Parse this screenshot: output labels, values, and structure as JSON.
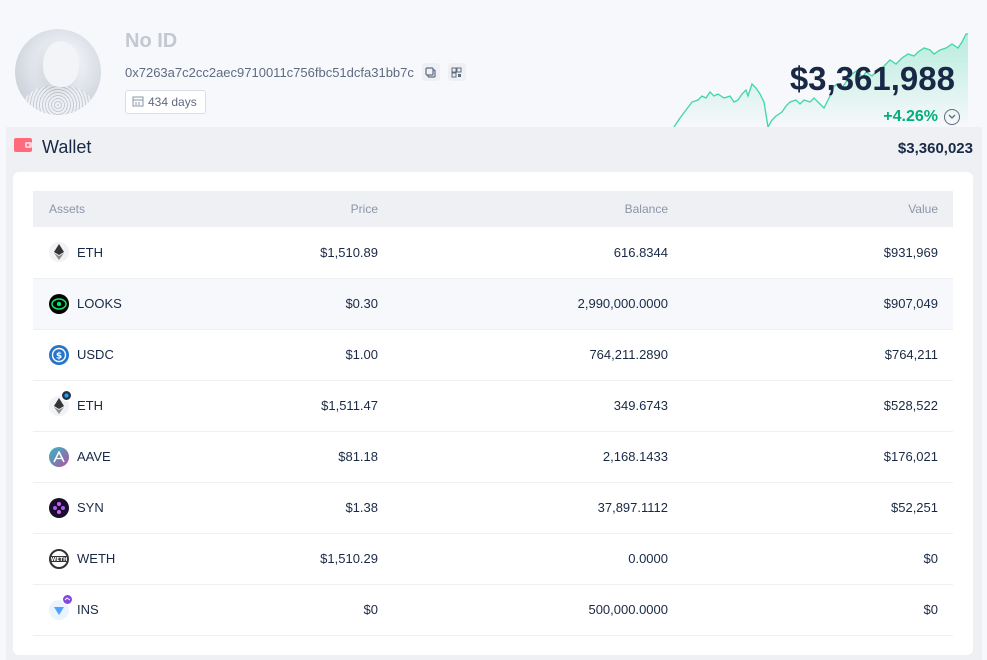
{
  "profile": {
    "name": "No ID",
    "address": "0x7263a7c2cc2aec9710011c756fbc51dcfa31bb7c",
    "days": "434 days",
    "total": "$3,361,988",
    "change": "+4.26%"
  },
  "icons": {
    "copy": "copy-icon",
    "qr": "qr-code-icon",
    "calendar": "calendar-icon",
    "wallet": "wallet-icon",
    "chevron": "chevron-down-icon"
  },
  "colors": {
    "positive": "#00b075",
    "wallet_icon": "#ff6b7d",
    "sparkline": "#3fd7a3"
  },
  "wallet": {
    "label": "Wallet",
    "total": "$3,360,023",
    "columns": {
      "assets": "Assets",
      "price": "Price",
      "balance": "Balance",
      "value": "Value"
    },
    "rows": [
      {
        "symbol": "ETH",
        "price": "$1,510.89",
        "balance": "616.8344",
        "value": "$931,969",
        "icon": "eth-icon"
      },
      {
        "symbol": "LOOKS",
        "price": "$0.30",
        "balance": "2,990,000.0000",
        "value": "$907,049",
        "icon": "looks-icon"
      },
      {
        "symbol": "USDC",
        "price": "$1.00",
        "balance": "764,211.2890",
        "value": "$764,211",
        "icon": "usdc-icon"
      },
      {
        "symbol": "ETH",
        "price": "$1,511.47",
        "balance": "349.6743",
        "value": "$528,522",
        "icon": "eth-icon"
      },
      {
        "symbol": "AAVE",
        "price": "$81.18",
        "balance": "2,168.1433",
        "value": "$176,021",
        "icon": "aave-icon"
      },
      {
        "symbol": "SYN",
        "price": "$1.38",
        "balance": "37,897.1112",
        "value": "$52,251",
        "icon": "syn-icon"
      },
      {
        "symbol": "WETH",
        "price": "$1,510.29",
        "balance": "0.0000",
        "value": "$0",
        "icon": "weth-icon"
      },
      {
        "symbol": "INS",
        "price": "$0",
        "balance": "500,000.0000",
        "value": "$0",
        "icon": "ins-icon"
      }
    ]
  }
}
